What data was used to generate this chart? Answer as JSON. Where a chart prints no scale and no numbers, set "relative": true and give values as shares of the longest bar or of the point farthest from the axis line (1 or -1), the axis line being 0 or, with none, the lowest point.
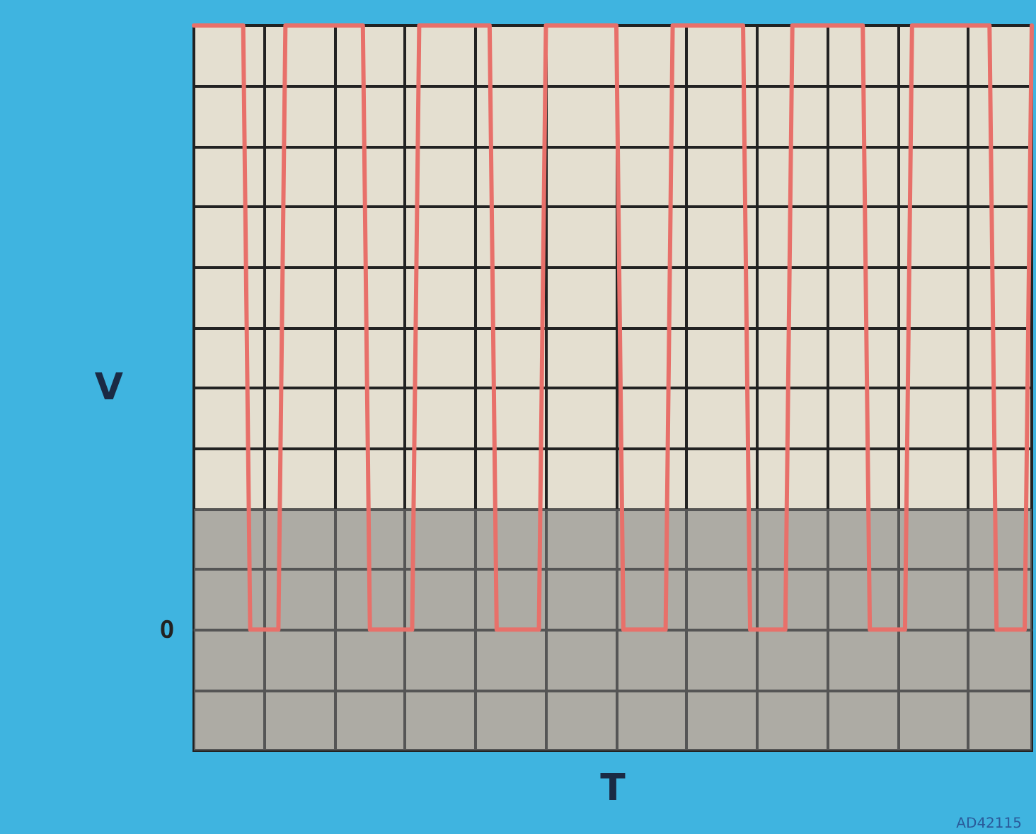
{
  "chart_data": {
    "type": "line",
    "relative": true,
    "xlabel": "T",
    "ylabel": "V",
    "grid": true,
    "line_style": "solid",
    "categories": [
      null,
      null,
      null,
      null,
      null,
      null,
      null,
      null,
      null,
      null,
      null,
      null,
      null,
      null,
      null,
      null,
      null,
      null,
      null,
      null,
      null,
      null,
      null,
      null,
      null,
      null,
      null,
      null,
      null,
      null,
      null,
      null,
      null,
      null,
      null,
      null,
      null,
      null,
      null,
      null,
      null,
      null,
      null,
      null,
      null,
      null,
      null,
      null,
      null,
      null,
      null,
      null,
      null,
      null,
      null,
      null,
      null,
      null,
      null,
      null,
      null,
      null,
      null,
      null,
      null,
      null,
      null,
      null,
      null,
      null,
      null,
      null,
      null,
      null,
      null,
      null,
      null,
      null,
      null,
      null,
      null,
      null,
      null,
      null,
      null,
      null,
      null,
      null,
      null,
      null,
      null,
      null,
      null,
      null,
      null,
      null,
      null,
      null,
      null,
      null,
      null,
      null,
      null,
      null,
      null,
      null,
      null,
      null,
      null,
      null,
      null,
      null,
      null,
      null,
      null,
      null,
      null,
      null,
      null,
      null
    ],
    "series": [
      {
        "color": "#e8706a",
        "values": [
          1,
          1,
          1,
          1,
          1,
          1,
          1,
          1,
          0,
          0,
          0,
          0,
          0,
          1,
          1,
          1,
          1,
          1,
          1,
          1,
          1,
          1,
          1,
          1,
          1,
          0,
          0,
          0,
          0,
          0,
          0,
          0,
          1,
          1,
          1,
          1,
          1,
          1,
          1,
          1,
          1,
          1,
          1,
          0,
          0,
          0,
          0,
          0,
          0,
          0,
          1,
          1,
          1,
          1,
          1,
          1,
          1,
          1,
          1,
          1,
          1,
          0,
          0,
          0,
          0,
          0,
          0,
          0,
          1,
          1,
          1,
          1,
          1,
          1,
          1,
          1,
          1,
          1,
          1,
          0,
          0,
          0,
          0,
          0,
          0,
          1,
          1,
          1,
          1,
          1,
          1,
          1,
          1,
          1,
          1,
          1,
          0,
          0,
          0,
          0,
          0,
          0,
          1,
          1,
          1,
          1,
          1,
          1,
          1,
          1,
          1,
          1,
          1,
          1,
          0,
          0,
          0,
          0,
          0,
          1
        ]
      }
    ],
    "ref_lines": [
      {
        "axis": "y",
        "value": 0,
        "label": "0",
        "color": "#555555"
      }
    ],
    "bands": [
      {
        "axis": "y",
        "from": -0.2,
        "to": 0.2,
        "color": "#7f7f7f"
      }
    ],
    "annotations": [
      "AD42115"
    ]
  }
}
